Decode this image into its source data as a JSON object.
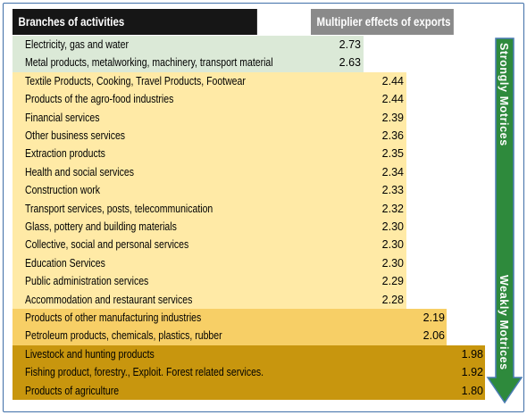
{
  "chart_data": {
    "type": "table",
    "columns": [
      "Branches of activities",
      "Multiplier effects of exports"
    ],
    "rows": [
      {
        "branch": "Electricity, gas and water",
        "value": "2.73"
      },
      {
        "branch": "Metal products, metalworking, machinery, transport material",
        "value": "2.63"
      },
      {
        "branch": "Textile Products, Cooking, Travel Products, Footwear",
        "value": "2.44"
      },
      {
        "branch": "Products of the agro-food industries",
        "value": "2.44"
      },
      {
        "branch": "Financial services",
        "value": "2.39"
      },
      {
        "branch": "Other business services",
        "value": "2.36"
      },
      {
        "branch": "Extraction products",
        "value": "2.35"
      },
      {
        "branch": "Health and social services",
        "value": "2.34"
      },
      {
        "branch": "Construction work",
        "value": "2.33"
      },
      {
        "branch": "Transport services, posts, telecommunication",
        "value": "2.32"
      },
      {
        "branch": "Glass, pottery and building materials",
        "value": "2.30"
      },
      {
        "branch": "Collective, social and personal services",
        "value": "2.30"
      },
      {
        "branch": "Education Services",
        "value": "2.30"
      },
      {
        "branch": "Public administration services",
        "value": "2.29"
      },
      {
        "branch": "Accommodation and restaurant services",
        "value": "2.28"
      },
      {
        "branch": "Products of other manufacturing industries",
        "value": "2.19"
      },
      {
        "branch": "Petroleum products, chemicals, plastics, rubber",
        "value": "2.06"
      },
      {
        "branch": "Livestock and hunting products",
        "value": "1.98"
      },
      {
        "branch": "Fishing product, forestry., Exploit. Forest related services.",
        "value": "1.92"
      },
      {
        "branch": "Products of agriculture",
        "value": "1.80"
      }
    ],
    "arrow_labels": {
      "top": "Strongly Motrices",
      "bottom": "Weakly Motrices"
    }
  },
  "colors": {
    "header_left": "#161616",
    "header_right": "#8a8a8a",
    "tier1": "#dbe9d7",
    "tier2": "#ffeaa6",
    "tier3": "#f7cf66",
    "tier4": "#c8960e",
    "arrow": "#2e8a3c",
    "arrow_border": "#4a7bb3"
  }
}
